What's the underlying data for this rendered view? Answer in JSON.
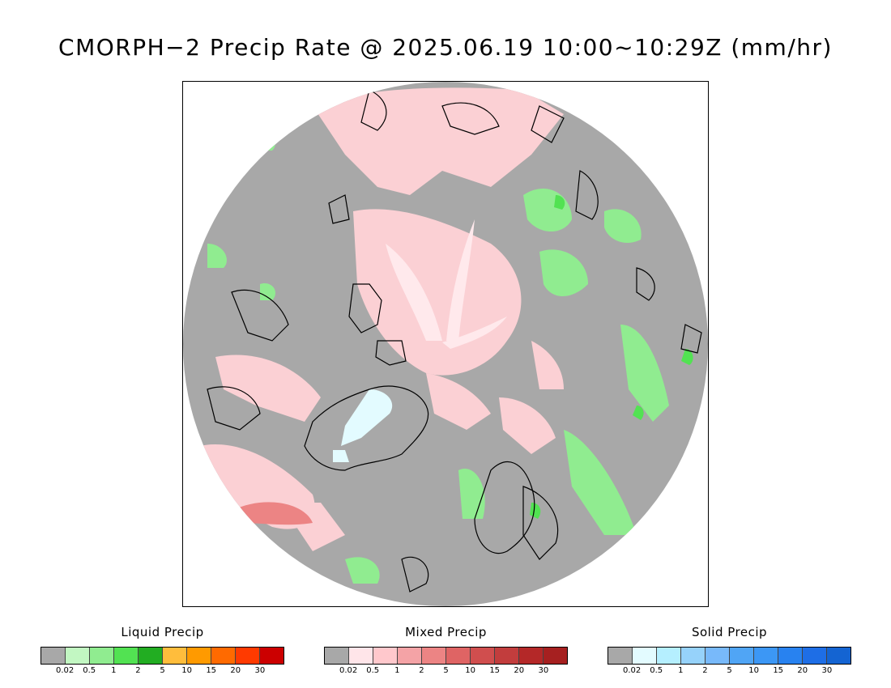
{
  "title": "CMORPH−2 Precip Rate @ 2025.06.19 10:00~10:29Z (mm/hr)",
  "map": {
    "projection": "polar-stereographic-north",
    "background_color": "#a8a8a8",
    "coastline_color": "#000000"
  },
  "legends": [
    {
      "title": "Liquid Precip",
      "tick_labels": [
        "0.02",
        "0.5",
        "1",
        "2",
        "5",
        "10",
        "15",
        "20",
        "30"
      ],
      "colors": [
        "#a8a8a8",
        "#c2f7c2",
        "#90ec90",
        "#52e252",
        "#22ad22",
        "#ffbd3c",
        "#ff9a00",
        "#ff6a00",
        "#ff3a00",
        "#cc0000"
      ]
    },
    {
      "title": "Mixed Precip",
      "tick_labels": [
        "0.02",
        "0.5",
        "1",
        "2",
        "5",
        "10",
        "15",
        "20",
        "30"
      ],
      "colors": [
        "#a8a8a8",
        "#ffe5e9",
        "#ffc8cc",
        "#f4a3a6",
        "#ec8484",
        "#df6464",
        "#d04e4e",
        "#c23d3d",
        "#b42828",
        "#a62020"
      ]
    },
    {
      "title": "Solid Precip",
      "tick_labels": [
        "0.02",
        "0.5",
        "1",
        "2",
        "5",
        "10",
        "15",
        "20",
        "30"
      ],
      "colors": [
        "#a8a8a8",
        "#e3fbff",
        "#b5efff",
        "#96d2fa",
        "#78b9fa",
        "#50a5f5",
        "#3c97f5",
        "#2882f0",
        "#1e6ee6",
        "#1464d2"
      ]
    }
  ]
}
